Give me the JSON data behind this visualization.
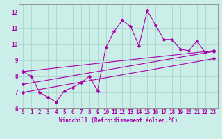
{
  "xlabel": "Windchill (Refroidissement éolien,°C)",
  "bg_color": "#cceee8",
  "grid_color": "#aad4ce",
  "line_color": "#aa00aa",
  "spine_color": "#888888",
  "xlim": [
    -0.5,
    23.5
  ],
  "ylim": [
    6,
    12.5
  ],
  "xticks": [
    0,
    1,
    2,
    3,
    4,
    5,
    6,
    7,
    8,
    9,
    10,
    11,
    12,
    13,
    14,
    15,
    16,
    17,
    18,
    19,
    20,
    21,
    22,
    23
  ],
  "yticks": [
    6,
    7,
    8,
    9,
    10,
    11,
    12
  ],
  "series1_x": [
    0,
    1,
    2,
    3,
    4,
    5,
    6,
    7,
    8,
    9,
    10,
    11,
    12,
    13,
    14,
    15,
    16,
    17,
    18,
    19,
    20,
    21,
    22,
    23
  ],
  "series1_y": [
    8.3,
    8.0,
    7.0,
    6.7,
    6.4,
    7.1,
    7.3,
    7.6,
    8.0,
    7.1,
    9.8,
    10.8,
    11.5,
    11.1,
    9.9,
    12.1,
    11.2,
    10.3,
    10.3,
    9.7,
    9.6,
    10.2,
    9.5,
    9.6
  ],
  "line2_x": [
    0,
    23
  ],
  "line2_y": [
    8.3,
    9.6
  ],
  "line3_x": [
    0,
    23
  ],
  "line3_y": [
    7.5,
    9.55
  ],
  "line4_x": [
    0,
    23
  ],
  "line4_y": [
    7.0,
    9.1
  ],
  "marker_size": 2.5,
  "lw": 0.8,
  "tick_fontsize": 5.5,
  "xlabel_fontsize": 5.5
}
